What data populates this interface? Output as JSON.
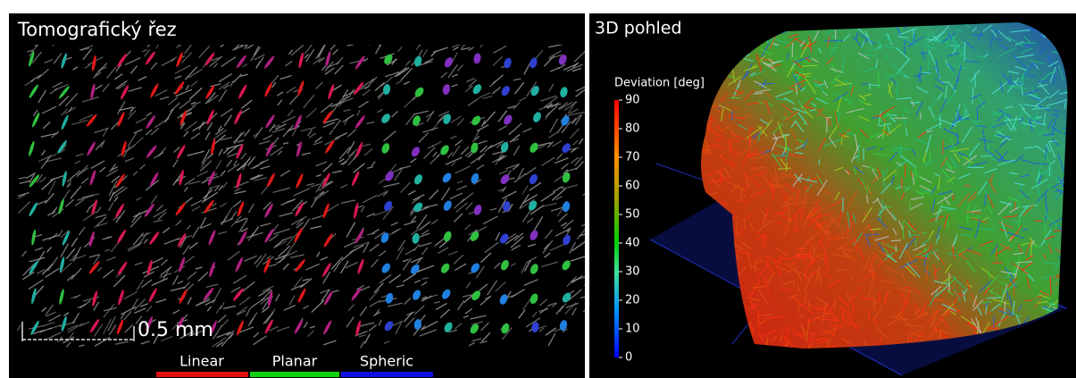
{
  "left_panel": {
    "title": "Tomografický řez",
    "scale_bar": "0.5 mm",
    "legend": [
      "Linear",
      "Planar",
      "Spheric"
    ]
  },
  "right_panel": {
    "title": "3D pohled",
    "colorbar": {
      "title": "Deviation [deg]",
      "range": [
        0,
        90
      ],
      "ticks": [
        0,
        10,
        20,
        30,
        40,
        50,
        60,
        70,
        80,
        90
      ]
    }
  }
}
